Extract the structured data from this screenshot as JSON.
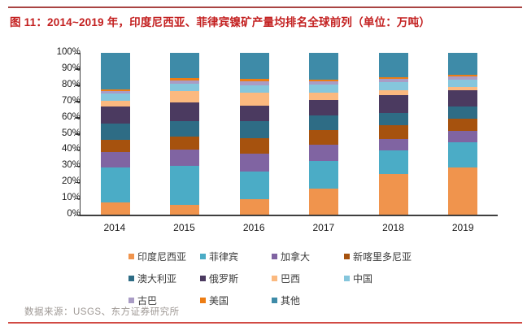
{
  "title": "图 11：2014~2019 年，印度尼西亚、菲律宾镍矿产量均排名全球前列（单位：万吨）",
  "source": "数据来源：USGS、东方证券研究所",
  "colors": {
    "title_red": "#c32020",
    "top_rule": "#a94442",
    "bottom_rule": "#d14a44",
    "axis": "#3f3f3f"
  },
  "chart_data": {
    "type": "bar",
    "stacked": true,
    "percent": true,
    "title": "",
    "xlabel": "",
    "ylabel": "",
    "ylim": [
      0,
      100
    ],
    "grid": false,
    "legend_position": "bottom",
    "categories": [
      "2014",
      "2015",
      "2016",
      "2017",
      "2018",
      "2019"
    ],
    "y_ticks": [
      "0%",
      "10%",
      "20%",
      "30%",
      "40%",
      "50%",
      "60%",
      "70%",
      "80%",
      "90%",
      "100%"
    ],
    "series": [
      {
        "name": "印度尼西亚",
        "color": "#f0944d",
        "values": [
          7.5,
          6,
          9.5,
          16,
          25,
          29
        ]
      },
      {
        "name": "菲律宾",
        "color": "#4bacc6",
        "values": [
          21.5,
          24,
          17,
          17,
          14.5,
          15.5
        ]
      },
      {
        "name": "加拿大",
        "color": "#8064a2",
        "values": [
          9.5,
          10,
          11,
          10,
          7,
          7.5
        ]
      },
      {
        "name": "新喀里多尼亚",
        "color": "#a6520e",
        "values": [
          7.5,
          8.5,
          10,
          9.5,
          9,
          7.5
        ]
      },
      {
        "name": "澳大利亚",
        "color": "#2e6c85",
        "values": [
          10.5,
          9.5,
          10.5,
          9,
          7.5,
          7.5
        ]
      },
      {
        "name": "俄罗斯",
        "color": "#4b3a60",
        "values": [
          10.5,
          11.5,
          9.5,
          9.5,
          11,
          10
        ]
      },
      {
        "name": "巴西",
        "color": "#fbb97f",
        "values": [
          3.5,
          7,
          8,
          4.5,
          3,
          2
        ]
      },
      {
        "name": "中国",
        "color": "#85c6dc",
        "values": [
          4.5,
          4.5,
          4.5,
          5,
          5,
          4.5
        ]
      },
      {
        "name": "古巴",
        "color": "#a99cc5",
        "values": [
          1.5,
          2,
          2.5,
          2,
          2,
          2
        ]
      },
      {
        "name": "美国",
        "color": "#ed7d14",
        "values": [
          1,
          1.5,
          1.5,
          1,
          1,
          1
        ]
      },
      {
        "name": "其他",
        "color": "#3e8ba8",
        "values": [
          22.5,
          15.5,
          16,
          16.5,
          15,
          13.5
        ]
      }
    ]
  }
}
